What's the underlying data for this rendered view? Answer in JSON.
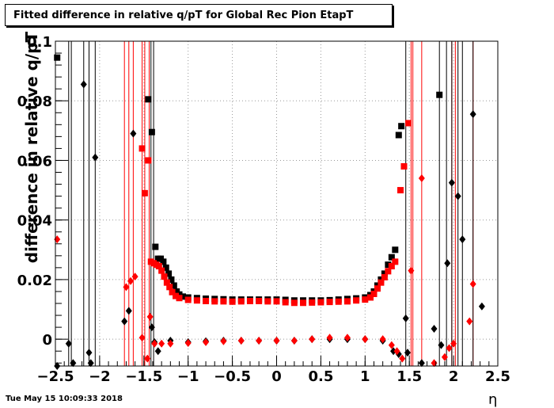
{
  "title": "Fitted difference in relative q/pT for Global Rec Pion EtapT",
  "timestamp": "Tue May 15 10:09:33 2018",
  "chart_data": {
    "type": "scatter",
    "title": "Fitted difference in relative q/pT for Global Rec Pion EtapT",
    "xlabel": "η",
    "ylabel": "difference in relative q/pT",
    "xlim": [
      -2.5,
      2.5
    ],
    "ylim": [
      -0.009,
      0.1
    ],
    "xticks": [
      "-2.5",
      "-2",
      "-1.5",
      "-1",
      "-0.5",
      "0",
      "0.5",
      "1",
      "1.5",
      "2",
      "2.5"
    ],
    "yticks": [
      "0",
      "0.02",
      "0.04",
      "0.06",
      "0.08",
      "0.1"
    ],
    "grid": true,
    "series": [
      {
        "marker": "square",
        "color": "#000000",
        "points": [
          [
            -2.48,
            0.0945
          ],
          [
            -1.45,
            0.0805
          ],
          [
            -1.41,
            0.0695
          ],
          [
            -1.37,
            0.031
          ],
          [
            -1.34,
            0.027
          ],
          [
            -1.31,
            0.027
          ],
          [
            -1.28,
            0.026
          ],
          [
            -1.25,
            0.024
          ],
          [
            -1.22,
            0.022
          ],
          [
            -1.19,
            0.02
          ],
          [
            -1.16,
            0.018
          ],
          [
            -1.13,
            0.016
          ],
          [
            -1.1,
            0.015
          ],
          [
            -1.06,
            0.0143
          ],
          [
            -1.0,
            0.014
          ],
          [
            -0.9,
            0.0138
          ],
          [
            -0.8,
            0.0136
          ],
          [
            -0.7,
            0.0135
          ],
          [
            -0.6,
            0.0134
          ],
          [
            -0.5,
            0.0133
          ],
          [
            -0.4,
            0.0133
          ],
          [
            -0.3,
            0.0133
          ],
          [
            -0.2,
            0.0133
          ],
          [
            -0.1,
            0.0133
          ],
          [
            0.0,
            0.0133
          ],
          [
            0.1,
            0.0132
          ],
          [
            0.2,
            0.013
          ],
          [
            0.3,
            0.013
          ],
          [
            0.4,
            0.013
          ],
          [
            0.5,
            0.013
          ],
          [
            0.6,
            0.0131
          ],
          [
            0.7,
            0.0133
          ],
          [
            0.8,
            0.0135
          ],
          [
            0.9,
            0.0137
          ],
          [
            1.0,
            0.014
          ],
          [
            1.06,
            0.0148
          ],
          [
            1.1,
            0.016
          ],
          [
            1.14,
            0.018
          ],
          [
            1.18,
            0.02
          ],
          [
            1.22,
            0.022
          ],
          [
            1.26,
            0.025
          ],
          [
            1.3,
            0.0275
          ],
          [
            1.34,
            0.03
          ],
          [
            1.38,
            0.0685
          ],
          [
            1.41,
            0.0715
          ],
          [
            1.84,
            0.082
          ]
        ]
      },
      {
        "marker": "square",
        "color": "#ff0000",
        "points": [
          [
            -1.52,
            0.064
          ],
          [
            -1.49,
            0.049
          ],
          [
            -1.45,
            0.06
          ],
          [
            -1.42,
            0.026
          ],
          [
            -1.39,
            0.0255
          ],
          [
            -1.36,
            0.025
          ],
          [
            -1.33,
            0.0245
          ],
          [
            -1.3,
            0.023
          ],
          [
            -1.27,
            0.021
          ],
          [
            -1.24,
            0.019
          ],
          [
            -1.21,
            0.0175
          ],
          [
            -1.18,
            0.0158
          ],
          [
            -1.14,
            0.0145
          ],
          [
            -1.1,
            0.0138
          ],
          [
            -1.0,
            0.0132
          ],
          [
            -0.9,
            0.013
          ],
          [
            -0.8,
            0.0128
          ],
          [
            -0.7,
            0.0127
          ],
          [
            -0.6,
            0.0127
          ],
          [
            -0.5,
            0.0126
          ],
          [
            -0.4,
            0.0127
          ],
          [
            -0.3,
            0.0128
          ],
          [
            -0.2,
            0.0128
          ],
          [
            -0.1,
            0.0127
          ],
          [
            0.0,
            0.0127
          ],
          [
            0.1,
            0.0124
          ],
          [
            0.2,
            0.0122
          ],
          [
            0.3,
            0.0122
          ],
          [
            0.4,
            0.0123
          ],
          [
            0.5,
            0.0124
          ],
          [
            0.6,
            0.0125
          ],
          [
            0.7,
            0.0126
          ],
          [
            0.8,
            0.0127
          ],
          [
            0.9,
            0.013
          ],
          [
            1.0,
            0.0133
          ],
          [
            1.06,
            0.014
          ],
          [
            1.1,
            0.0152
          ],
          [
            1.14,
            0.017
          ],
          [
            1.18,
            0.019
          ],
          [
            1.22,
            0.0208
          ],
          [
            1.26,
            0.0228
          ],
          [
            1.3,
            0.0245
          ],
          [
            1.34,
            0.026
          ],
          [
            1.4,
            0.05
          ],
          [
            1.44,
            0.058
          ],
          [
            1.49,
            0.0725
          ]
        ]
      },
      {
        "marker": "diamond",
        "color": "#000000",
        "points": [
          [
            -2.48,
            -0.009
          ],
          [
            -2.35,
            -0.0015
          ],
          [
            -2.3,
            -0.008
          ],
          [
            -2.18,
            0.0855
          ],
          [
            -2.12,
            -0.0045
          ],
          [
            -2.1,
            -0.008
          ],
          [
            -2.05,
            0.061
          ],
          [
            -1.72,
            0.006
          ],
          [
            -1.67,
            0.0095
          ],
          [
            -1.62,
            0.069
          ],
          [
            -1.41,
            0.004
          ],
          [
            -1.38,
            -0.001
          ],
          [
            -1.34,
            -0.004
          ],
          [
            -1.2,
            -0.0005
          ],
          [
            -1.0,
            -0.001
          ],
          [
            -0.8,
            -0.0007
          ],
          [
            -0.6,
            -0.0005
          ],
          [
            -0.4,
            -0.0005
          ],
          [
            -0.2,
            -0.0005
          ],
          [
            0.0,
            -0.0005
          ],
          [
            0.2,
            -0.0005
          ],
          [
            0.4,
            0.0
          ],
          [
            0.6,
            0.0
          ],
          [
            0.8,
            0.0
          ],
          [
            1.0,
            0.0
          ],
          [
            1.2,
            -0.0005
          ],
          [
            1.32,
            -0.004
          ],
          [
            1.38,
            -0.005
          ],
          [
            1.46,
            0.007
          ],
          [
            1.48,
            -0.0045
          ],
          [
            1.64,
            -0.008
          ],
          [
            1.78,
            0.0035
          ],
          [
            1.86,
            -0.002
          ],
          [
            1.93,
            0.0255
          ],
          [
            1.98,
            0.0525
          ],
          [
            2.05,
            0.048
          ],
          [
            2.1,
            0.0335
          ],
          [
            2.22,
            0.0755
          ],
          [
            2.32,
            0.011
          ]
        ]
      },
      {
        "marker": "diamond",
        "color": "#ff0000",
        "points": [
          [
            -2.48,
            0.0335
          ],
          [
            -1.7,
            0.0175
          ],
          [
            -1.65,
            0.0195
          ],
          [
            -1.6,
            0.021
          ],
          [
            -1.52,
            0.0005
          ],
          [
            -1.46,
            -0.0065
          ],
          [
            -1.43,
            0.0075
          ],
          [
            -1.38,
            -0.0015
          ],
          [
            -1.3,
            -0.0015
          ],
          [
            -1.2,
            -0.0015
          ],
          [
            -1.0,
            -0.0013
          ],
          [
            -0.8,
            -0.001
          ],
          [
            -0.6,
            -0.0007
          ],
          [
            -0.4,
            -0.0005
          ],
          [
            -0.2,
            -0.0005
          ],
          [
            0.0,
            -0.0005
          ],
          [
            0.2,
            -0.0005
          ],
          [
            0.4,
            0.0
          ],
          [
            0.6,
            0.0005
          ],
          [
            0.8,
            0.0005
          ],
          [
            1.0,
            0.0
          ],
          [
            1.2,
            0.0
          ],
          [
            1.3,
            -0.002
          ],
          [
            1.36,
            -0.004
          ],
          [
            1.42,
            -0.0065
          ],
          [
            1.52,
            0.023
          ],
          [
            1.64,
            0.054
          ],
          [
            1.78,
            -0.008
          ],
          [
            1.9,
            -0.006
          ],
          [
            1.95,
            -0.003
          ],
          [
            2.0,
            -0.0015
          ],
          [
            2.18,
            0.006
          ],
          [
            2.22,
            0.0185
          ]
        ]
      }
    ],
    "error_bars": [
      {
        "color": "#ff0000",
        "x": [
          -1.72,
          -1.67,
          -1.62,
          -1.52,
          -1.49,
          -1.44,
          1.52,
          1.54,
          1.64,
          1.98,
          2.02,
          2.22
        ]
      },
      {
        "color": "#000000",
        "x": [
          -2.35,
          -2.32,
          -2.18,
          -2.12,
          -2.05,
          -1.42,
          -1.39,
          1.46,
          1.84,
          1.92,
          1.98,
          2.05,
          2.1,
          2.22
        ]
      }
    ]
  }
}
